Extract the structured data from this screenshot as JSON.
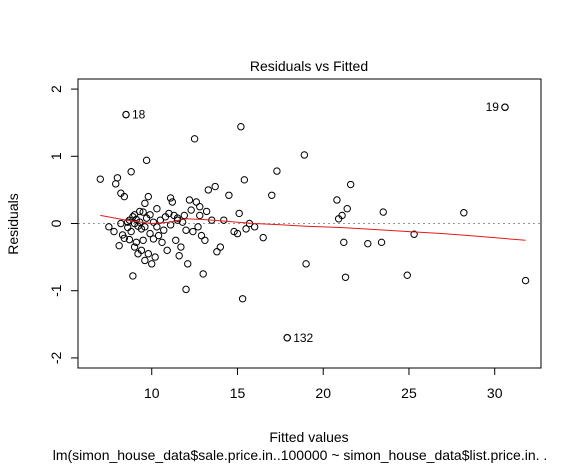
{
  "chart_data": {
    "type": "scatter",
    "title": "Residuals vs Fitted",
    "xlabel": "Fitted values",
    "ylabel": "Residuals",
    "subtitle": "lm(simon_house_data$sale.price.in..100000 ~ simon_house_data$list.price.in. .",
    "xlim": [
      5.7,
      32.7
    ],
    "ylim": [
      -2.15,
      2.15
    ],
    "xticks": [
      10,
      15,
      20,
      25,
      30
    ],
    "yticks": [
      -2,
      -1,
      0,
      1,
      2
    ],
    "grid": false,
    "reference_line": {
      "y": 0,
      "style": "dotted",
      "color": "#999999"
    },
    "smooth_color": "#e41a1c",
    "point_style": "open-circle",
    "labeled_points": [
      {
        "label": "18",
        "x": 8.5,
        "y": 1.62
      },
      {
        "label": "19",
        "x": 30.6,
        "y": 1.73
      },
      {
        "label": "132",
        "x": 17.9,
        "y": -1.7
      }
    ],
    "smooth": [
      {
        "x": 7.0,
        "y": 0.12
      },
      {
        "x": 8.5,
        "y": 0.05
      },
      {
        "x": 10.0,
        "y": 0.0
      },
      {
        "x": 11.0,
        "y": 0.02
      },
      {
        "x": 12.0,
        "y": 0.07
      },
      {
        "x": 13.0,
        "y": 0.06
      },
      {
        "x": 14.0,
        "y": 0.04
      },
      {
        "x": 15.0,
        "y": 0.02
      },
      {
        "x": 16.0,
        "y": 0.0
      },
      {
        "x": 17.5,
        "y": -0.02
      },
      {
        "x": 19.0,
        "y": -0.04
      },
      {
        "x": 21.0,
        "y": -0.06
      },
      {
        "x": 23.0,
        "y": -0.09
      },
      {
        "x": 25.0,
        "y": -0.12
      },
      {
        "x": 27.0,
        "y": -0.15
      },
      {
        "x": 29.0,
        "y": -0.19
      },
      {
        "x": 31.8,
        "y": -0.25
      }
    ],
    "points": [
      [
        7.0,
        0.66
      ],
      [
        7.5,
        -0.05
      ],
      [
        7.8,
        -0.12
      ],
      [
        7.9,
        0.59
      ],
      [
        8.0,
        0.68
      ],
      [
        8.1,
        -0.33
      ],
      [
        8.2,
        0.45
      ],
      [
        8.3,
        -0.17
      ],
      [
        8.4,
        -0.22
      ],
      [
        8.4,
        0.4
      ],
      [
        8.5,
        1.62
      ],
      [
        8.6,
        -0.06
      ],
      [
        8.6,
        0.02
      ],
      [
        8.7,
        -0.24
      ],
      [
        8.7,
        0.05
      ],
      [
        8.8,
        0.77
      ],
      [
        8.8,
        -0.12
      ],
      [
        8.9,
        -0.78
      ],
      [
        8.9,
        0.1
      ],
      [
        9.0,
        -0.35
      ],
      [
        9.0,
        0.13
      ],
      [
        9.1,
        -0.28
      ],
      [
        9.1,
        0.06
      ],
      [
        9.2,
        -0.45
      ],
      [
        9.2,
        -0.04
      ],
      [
        9.3,
        0.18
      ],
      [
        9.3,
        0.02
      ],
      [
        9.4,
        -0.4
      ],
      [
        9.4,
        -0.08
      ],
      [
        9.5,
        0.17
      ],
      [
        9.5,
        -0.25
      ],
      [
        9.6,
        0.3
      ],
      [
        9.6,
        -0.55
      ],
      [
        9.7,
        0.94
      ],
      [
        9.7,
        0.08
      ],
      [
        9.8,
        -0.45
      ],
      [
        9.8,
        0.4
      ],
      [
        9.9,
        -0.15
      ],
      [
        9.9,
        0.13
      ],
      [
        10.0,
        -0.6
      ],
      [
        10.1,
        -0.23
      ],
      [
        10.1,
        0.02
      ],
      [
        10.2,
        -0.5
      ],
      [
        10.3,
        0.22
      ],
      [
        10.4,
        -0.18
      ],
      [
        10.5,
        0.05
      ],
      [
        10.6,
        -0.28
      ],
      [
        10.7,
        -0.1
      ],
      [
        10.8,
        0.1
      ],
      [
        10.9,
        -0.4
      ],
      [
        11.0,
        0.15
      ],
      [
        11.1,
        -0.02
      ],
      [
        11.1,
        0.38
      ],
      [
        11.2,
        0.32
      ],
      [
        11.3,
        0.12
      ],
      [
        11.4,
        -0.25
      ],
      [
        11.5,
        0.05
      ],
      [
        11.6,
        -0.48
      ],
      [
        11.7,
        -0.35
      ],
      [
        11.8,
        0.02
      ],
      [
        11.9,
        0.12
      ],
      [
        12.0,
        -0.1
      ],
      [
        12.0,
        -0.98
      ],
      [
        12.1,
        -0.6
      ],
      [
        12.2,
        0.35
      ],
      [
        12.3,
        0.2
      ],
      [
        12.4,
        -0.12
      ],
      [
        12.5,
        1.26
      ],
      [
        12.6,
        0.32
      ],
      [
        12.7,
        -0.05
      ],
      [
        12.8,
        0.12
      ],
      [
        12.9,
        -0.18
      ],
      [
        13.0,
        -0.75
      ],
      [
        13.1,
        -0.25
      ],
      [
        13.2,
        0.18
      ],
      [
        13.3,
        0.5
      ],
      [
        13.5,
        0.05
      ],
      [
        13.7,
        0.55
      ],
      [
        13.8,
        -0.42
      ],
      [
        14.0,
        -0.35
      ],
      [
        14.2,
        0.05
      ],
      [
        14.5,
        0.42
      ],
      [
        14.8,
        -0.12
      ],
      [
        15.0,
        -0.15
      ],
      [
        15.1,
        0.15
      ],
      [
        15.2,
        1.44
      ],
      [
        15.3,
        -1.12
      ],
      [
        15.4,
        0.65
      ],
      [
        15.5,
        -0.08
      ],
      [
        15.7,
        0.0
      ],
      [
        16.0,
        -0.05
      ],
      [
        16.5,
        -0.21
      ],
      [
        17.0,
        0.42
      ],
      [
        17.3,
        0.78
      ],
      [
        18.9,
        1.02
      ],
      [
        19.0,
        -0.6
      ],
      [
        20.8,
        0.35
      ],
      [
        20.9,
        0.07
      ],
      [
        21.1,
        0.12
      ],
      [
        21.2,
        -0.28
      ],
      [
        21.3,
        -0.8
      ],
      [
        21.4,
        0.22
      ],
      [
        21.6,
        0.58
      ],
      [
        22.6,
        -0.3
      ],
      [
        23.4,
        -0.28
      ],
      [
        23.5,
        0.17
      ],
      [
        24.9,
        -0.77
      ],
      [
        25.3,
        -0.16
      ],
      [
        28.2,
        0.16
      ],
      [
        30.6,
        1.73
      ],
      [
        31.8,
        -0.85
      ],
      [
        17.9,
        -1.7
      ],
      [
        9.0,
        0.0
      ],
      [
        10.3,
        -0.05
      ],
      [
        11.5,
        0.08
      ],
      [
        12.8,
        0.25
      ],
      [
        8.2,
        0.0
      ],
      [
        9.6,
        -0.05
      ]
    ]
  }
}
